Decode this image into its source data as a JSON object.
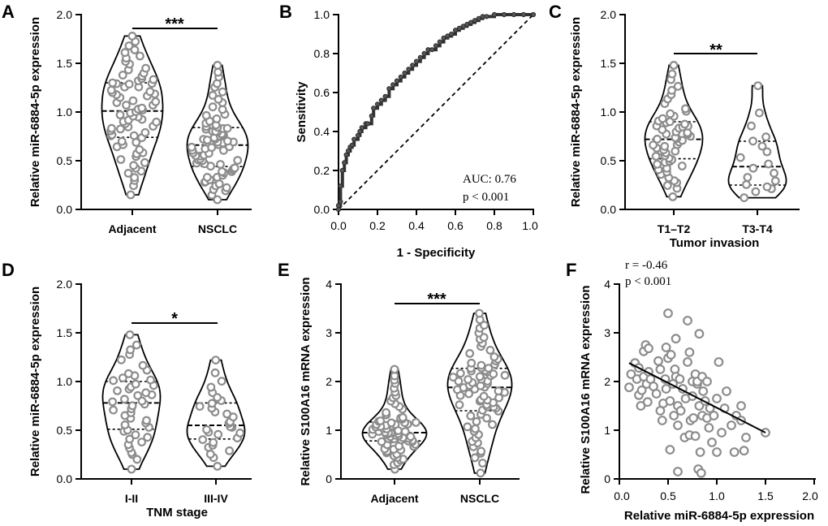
{
  "figure_panels": [
    {
      "letter": "A",
      "kind": "violin",
      "ylabel": "Relative miR-6884-5p expression",
      "ylim": [
        0,
        2.0
      ],
      "yticks": [
        "0.0",
        "0.5",
        "1.0",
        "1.5",
        "2.0"
      ],
      "xlabel": "",
      "categories": [
        "Adjacent",
        "NSCLC"
      ],
      "significance": "***",
      "n": [
        76,
        76
      ],
      "stats": [
        {
          "min": 0.15,
          "q1": 0.74,
          "median": 1.01,
          "q3": 1.3,
          "max": 1.78
        },
        {
          "min": 0.1,
          "q1": 0.44,
          "median": 0.66,
          "q3": 0.84,
          "max": 1.48
        }
      ]
    },
    {
      "letter": "B",
      "kind": "roc",
      "xlabel": "1 - Specificity",
      "ylabel": "Sensitivity",
      "xlim": [
        0,
        1.0
      ],
      "ylim": [
        0,
        1.0
      ],
      "xticks": [
        "0.0",
        "0.2",
        "0.4",
        "0.6",
        "0.8",
        "1.0"
      ],
      "yticks": [
        "0.0",
        "0.2",
        "0.4",
        "0.6",
        "0.8",
        "1.0"
      ],
      "auc_text": "AUC: 0.76",
      "p_text": "p < 0.001"
    },
    {
      "letter": "C",
      "kind": "violin",
      "ylabel": "Relative miR-6884-5p expression",
      "ylim": [
        0,
        2.0
      ],
      "yticks": [
        "0.0",
        "0.5",
        "1.0",
        "1.5",
        "2.0"
      ],
      "xlabel": "Tumor invasion",
      "categories": [
        "T1–T2",
        "T3-T4"
      ],
      "significance": "**",
      "n": [
        58,
        18
      ],
      "stats": [
        {
          "min": 0.13,
          "q1": 0.52,
          "median": 0.72,
          "q3": 0.9,
          "max": 1.48
        },
        {
          "min": 0.12,
          "q1": 0.25,
          "median": 0.44,
          "q3": 0.7,
          "max": 1.27
        }
      ]
    },
    {
      "letter": "D",
      "kind": "violin",
      "ylabel": "Relative miR-6884-5p expression",
      "ylim": [
        0,
        2.0
      ],
      "yticks": [
        "0.0",
        "0.5",
        "1.0",
        "1.5",
        "2.0"
      ],
      "xlabel": "TNM stage",
      "categories": [
        "I-II",
        "III-IV"
      ],
      "significance": "*",
      "n": [
        46,
        30
      ],
      "stats": [
        {
          "min": 0.1,
          "q1": 0.51,
          "median": 0.78,
          "q3": 1.0,
          "max": 1.48
        },
        {
          "min": 0.13,
          "q1": 0.41,
          "median": 0.55,
          "q3": 0.78,
          "max": 1.22
        }
      ]
    },
    {
      "letter": "E",
      "kind": "violin",
      "ylabel": "Relative S100A16 mRNA expression",
      "ylim": [
        0,
        4
      ],
      "yticks": [
        "0",
        "1",
        "2",
        "3",
        "4"
      ],
      "xlabel": "",
      "categories": [
        "Adjacent",
        "NSCLC"
      ],
      "significance": "***",
      "n": [
        76,
        76
      ],
      "stats": [
        {
          "min": 0.2,
          "q1": 0.78,
          "median": 0.95,
          "q3": 1.17,
          "max": 2.25
        },
        {
          "min": 0.12,
          "q1": 1.4,
          "median": 1.88,
          "q3": 2.27,
          "max": 3.4
        }
      ]
    },
    {
      "letter": "F",
      "kind": "scatter",
      "xlabel": "Relative miR-6884-5p expression",
      "ylabel": "Relative S100A16 mRNA expression",
      "xlim": [
        0,
        2.0
      ],
      "ylim": [
        0,
        4
      ],
      "xticks": [
        "0.0",
        "0.5",
        "1.0",
        "1.5",
        "2.0"
      ],
      "yticks": [
        "0",
        "1",
        "2",
        "3",
        "4"
      ],
      "r_text": "r = -0.46",
      "p_text": "p < 0.001"
    }
  ],
  "chart_data": [
    {
      "type": "violin",
      "panel": "A",
      "title": "",
      "xlabel": "",
      "ylabel": "Relative miR-6884-5p expression",
      "categories": [
        "Adjacent",
        "NSCLC"
      ],
      "ylim": [
        0,
        2.0
      ],
      "annotation": "***"
    },
    {
      "type": "line",
      "panel": "B",
      "title": "",
      "xlabel": "1 - Specificity",
      "ylabel": "Sensitivity",
      "xlim": [
        0,
        1.0
      ],
      "ylim": [
        0,
        1.0
      ],
      "series": [
        {
          "name": "ROC",
          "x": [
            0,
            0,
            0.01,
            0.01,
            0.02,
            0.03,
            0.04,
            0.05,
            0.06,
            0.07,
            0.08,
            0.1,
            0.11,
            0.12,
            0.14,
            0.15,
            0.17,
            0.18,
            0.2,
            0.22,
            0.24,
            0.26,
            0.28,
            0.3,
            0.32,
            0.34,
            0.36,
            0.38,
            0.4,
            0.42,
            0.44,
            0.46,
            0.48,
            0.5,
            0.52,
            0.54,
            0.56,
            0.58,
            0.6,
            0.62,
            0.64,
            0.66,
            0.68,
            0.7,
            0.72,
            0.74,
            0.76,
            0.8,
            0.85,
            0.9,
            0.95,
            1.0
          ],
          "y": [
            0,
            0.02,
            0.04,
            0.12,
            0.2,
            0.24,
            0.28,
            0.3,
            0.32,
            0.33,
            0.36,
            0.38,
            0.4,
            0.42,
            0.44,
            0.44,
            0.48,
            0.52,
            0.54,
            0.56,
            0.58,
            0.62,
            0.64,
            0.66,
            0.68,
            0.7,
            0.72,
            0.74,
            0.76,
            0.78,
            0.8,
            0.82,
            0.82,
            0.84,
            0.86,
            0.88,
            0.89,
            0.9,
            0.92,
            0.93,
            0.94,
            0.95,
            0.96,
            0.97,
            0.98,
            0.99,
            0.99,
            1.0,
            1.0,
            1.0,
            1.0,
            1.0
          ]
        },
        {
          "name": "Reference",
          "x": [
            0,
            1.0
          ],
          "y": [
            0,
            1.0
          ]
        }
      ],
      "annotations": [
        "AUC: 0.76",
        "p < 0.001"
      ]
    },
    {
      "type": "violin",
      "panel": "C",
      "title": "",
      "xlabel": "Tumor invasion",
      "ylabel": "Relative miR-6884-5p expression",
      "categories": [
        "T1–T2",
        "T3-T4"
      ],
      "ylim": [
        0,
        2.0
      ],
      "annotation": "**"
    },
    {
      "type": "violin",
      "panel": "D",
      "title": "",
      "xlabel": "TNM stage",
      "ylabel": "Relative miR-6884-5p expression",
      "categories": [
        "I-II",
        "III-IV"
      ],
      "ylim": [
        0,
        2.0
      ],
      "annotation": "*"
    },
    {
      "type": "violin",
      "panel": "E",
      "title": "",
      "xlabel": "",
      "ylabel": "Relative S100A16 mRNA expression",
      "categories": [
        "Adjacent",
        "NSCLC"
      ],
      "ylim": [
        0,
        4
      ],
      "annotation": "***"
    },
    {
      "type": "scatter",
      "panel": "F",
      "title": "",
      "xlabel": "Relative miR-6884-5p expression",
      "ylabel": "Relative S100A16 mRNA expression",
      "xlim": [
        0,
        2.0
      ],
      "ylim": [
        0,
        4
      ],
      "points": [
        [
          0.1,
          1.88
        ],
        [
          0.12,
          2.15
        ],
        [
          0.16,
          2.38
        ],
        [
          0.18,
          2.05
        ],
        [
          0.2,
          2.28
        ],
        [
          0.2,
          1.72
        ],
        [
          0.22,
          1.5
        ],
        [
          0.23,
          1.82
        ],
        [
          0.25,
          2.62
        ],
        [
          0.25,
          2.1
        ],
        [
          0.27,
          2.75
        ],
        [
          0.28,
          1.95
        ],
        [
          0.29,
          1.58
        ],
        [
          0.3,
          2.68
        ],
        [
          0.3,
          2.2
        ],
        [
          0.32,
          2.05
        ],
        [
          0.35,
          1.9
        ],
        [
          0.38,
          1.75
        ],
        [
          0.4,
          2.42
        ],
        [
          0.42,
          1.4
        ],
        [
          0.42,
          2.25
        ],
        [
          0.44,
          1.2
        ],
        [
          0.45,
          1.55
        ],
        [
          0.47,
          2.05
        ],
        [
          0.48,
          2.7
        ],
        [
          0.48,
          1.85
        ],
        [
          0.5,
          3.4
        ],
        [
          0.5,
          2.48
        ],
        [
          0.52,
          0.6
        ],
        [
          0.52,
          1.6
        ],
        [
          0.53,
          2.55
        ],
        [
          0.55,
          1.95
        ],
        [
          0.56,
          1.3
        ],
        [
          0.57,
          2.25
        ],
        [
          0.58,
          2.88
        ],
        [
          0.58,
          2.1
        ],
        [
          0.6,
          0.15
        ],
        [
          0.6,
          1.5
        ],
        [
          0.6,
          1.1
        ],
        [
          0.62,
          2.05
        ],
        [
          0.63,
          1.4
        ],
        [
          0.65,
          1.85
        ],
        [
          0.67,
          0.85
        ],
        [
          0.68,
          1.65
        ],
        [
          0.7,
          2.4
        ],
        [
          0.7,
          3.25
        ],
        [
          0.72,
          2.6
        ],
        [
          0.72,
          0.9
        ],
        [
          0.73,
          1.2
        ],
        [
          0.75,
          1.7
        ],
        [
          0.75,
          2.0
        ],
        [
          0.76,
          1.25
        ],
        [
          0.78,
          2.15
        ],
        [
          0.78,
          0.88
        ],
        [
          0.8,
          1.95
        ],
        [
          0.8,
          2.0
        ],
        [
          0.81,
          0.2
        ],
        [
          0.82,
          2.98
        ],
        [
          0.82,
          1.5
        ],
        [
          0.83,
          0.55
        ],
        [
          0.84,
          0.12
        ],
        [
          0.85,
          1.3
        ],
        [
          0.85,
          2.1
        ],
        [
          0.86,
          1.8
        ],
        [
          0.88,
          1.6
        ],
        [
          0.9,
          1.25
        ],
        [
          0.9,
          2.0
        ],
        [
          0.92,
          1.05
        ],
        [
          0.93,
          1.45
        ],
        [
          0.95,
          0.75
        ],
        [
          0.97,
          1.3
        ],
        [
          1.0,
          1.65
        ],
        [
          1.0,
          0.55
        ],
        [
          1.02,
          2.4
        ],
        [
          1.05,
          0.95
        ],
        [
          1.08,
          1.45
        ],
        [
          1.1,
          1.8
        ],
        [
          1.15,
          1.1
        ],
        [
          1.18,
          0.55
        ],
        [
          1.2,
          1.3
        ],
        [
          1.25,
          1.5
        ],
        [
          1.25,
          1.2
        ],
        [
          1.28,
          0.58
        ],
        [
          1.3,
          0.85
        ],
        [
          1.5,
          0.95
        ]
      ],
      "fit_line": {
        "x": [
          0.1,
          1.5
        ],
        "y": [
          2.38,
          0.95
        ]
      },
      "annotations": [
        "r = -0.46",
        "p < 0.001"
      ]
    }
  ]
}
